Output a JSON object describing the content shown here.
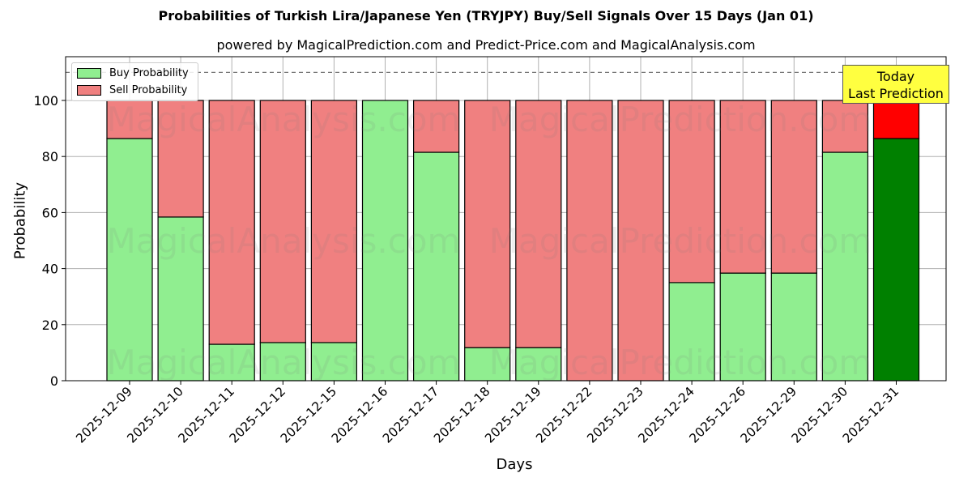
{
  "title": "Probabilities of Turkish Lira/Japanese Yen (TRYJPY) Buy/Sell Signals Over 15 Days (Jan 01)",
  "subtitle": "powered by MagicalPrediction.com and Predict-Price.com and MagicalAnalysis.com",
  "watermarks": [
    "MagicalAnalysis.com",
    "MagicalPrediction.com"
  ],
  "annotation": {
    "line1": "Today",
    "line2": "Last Prediction"
  },
  "colors": {
    "buy": "#90ee90",
    "sell": "#f08080",
    "buy_today": "#008000",
    "sell_today": "#ff0000",
    "annotation_bg": "#ffff40"
  },
  "chart_data": {
    "type": "bar",
    "stacked": true,
    "title": "Probabilities of Turkish Lira/Japanese Yen (TRYJPY) Buy/Sell Signals Over 15 Days (Jan 01)",
    "subtitle": "powered by MagicalPrediction.com and Predict-Price.com and MagicalAnalysis.com",
    "xlabel": "Days",
    "ylabel": "Probability",
    "ylim": [
      0,
      115
    ],
    "yticks": [
      0,
      20,
      40,
      60,
      80,
      100
    ],
    "grid": true,
    "reference_line": 110,
    "legend_position": "upper left",
    "categories": [
      "2025-12-09",
      "2025-12-10",
      "2025-12-11",
      "2025-12-12",
      "2025-12-15",
      "2025-12-16",
      "2025-12-17",
      "2025-12-18",
      "2025-12-19",
      "2025-12-22",
      "2025-12-23",
      "2025-12-24",
      "2025-12-26",
      "2025-12-29",
      "2025-12-30",
      "2025-12-31"
    ],
    "series": [
      {
        "name": "Buy Probability",
        "values": [
          86.4,
          58.4,
          13.0,
          13.6,
          13.6,
          100.0,
          81.5,
          11.8,
          11.8,
          0.0,
          0.0,
          35.0,
          38.4,
          38.4,
          81.5,
          86.4
        ]
      },
      {
        "name": "Sell Probability",
        "values": [
          13.6,
          41.6,
          87.0,
          86.4,
          86.4,
          0.0,
          18.5,
          88.2,
          88.2,
          100.0,
          100.0,
          65.0,
          61.6,
          61.6,
          18.5,
          13.6
        ]
      }
    ]
  }
}
